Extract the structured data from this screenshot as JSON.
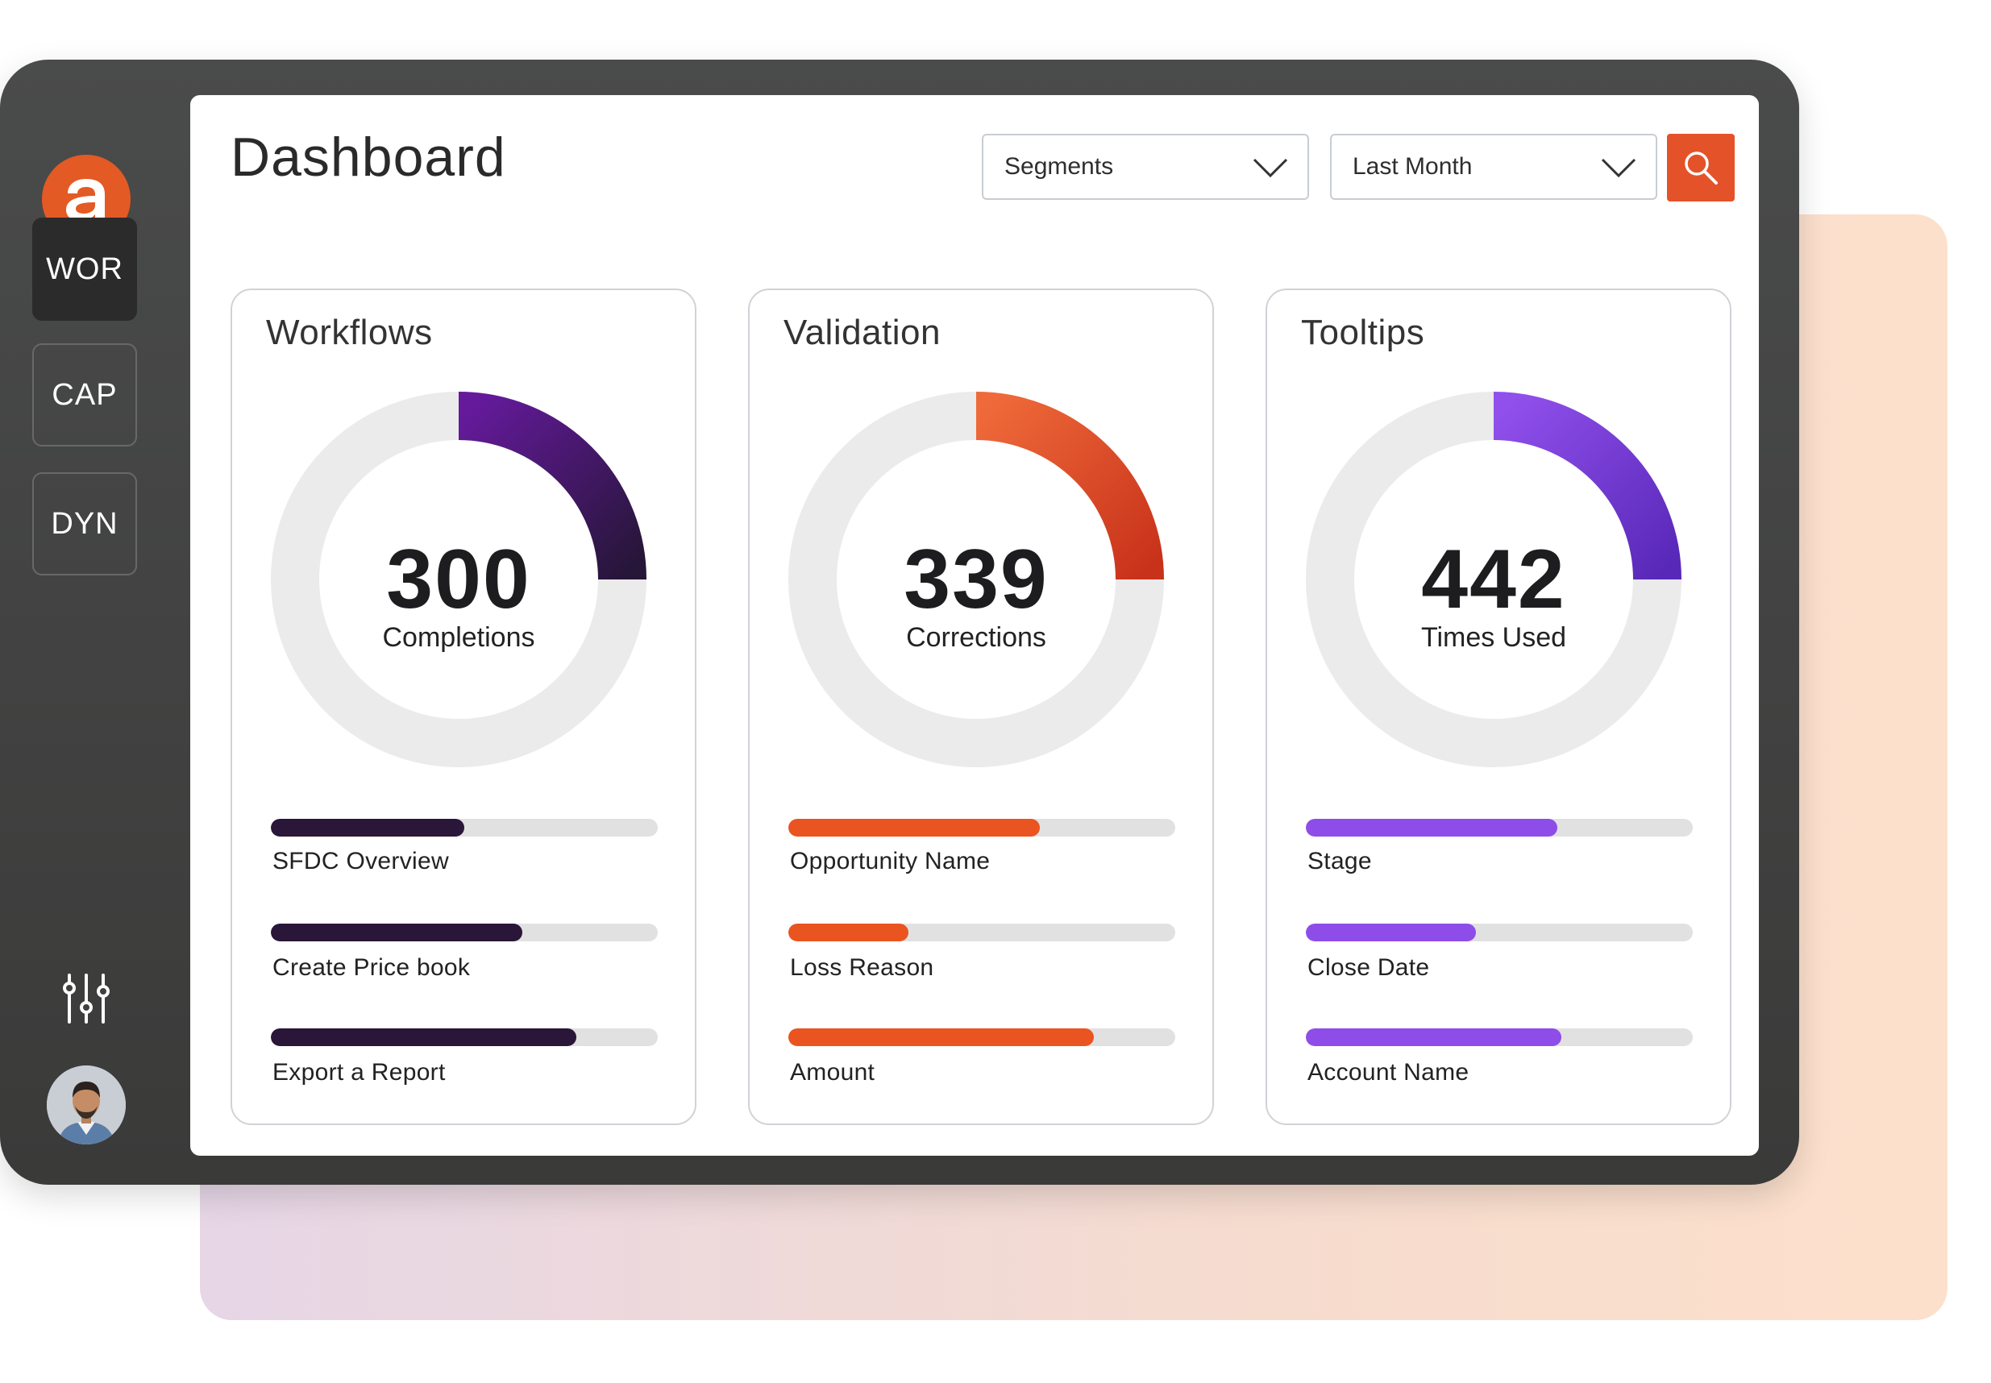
{
  "sidebar": {
    "logo_letter": "a",
    "items": [
      {
        "label": "WOR",
        "active": true
      },
      {
        "label": "CAP",
        "active": false
      },
      {
        "label": "DYN",
        "active": false
      }
    ],
    "settings_icon": "sliders-icon",
    "avatar_icon": "user-avatar"
  },
  "header": {
    "title": "Dashboard",
    "segment_select": "Segments",
    "period_select": "Last Month",
    "search_icon": "search-icon"
  },
  "colors": {
    "brand": "#e35a24",
    "workflows": "#2a1638",
    "validation": "#ea5420",
    "tooltips": "#8e4de8",
    "track": "#e1e1e1"
  },
  "cards": [
    {
      "title": "Workflows",
      "value": "300",
      "value_label": "Completions",
      "gauge_fraction": 0.25,
      "items": [
        {
          "label": "SFDC Overview",
          "fraction": 0.5
        },
        {
          "label": "Create Price book",
          "fraction": 0.65
        },
        {
          "label": "Export a Report",
          "fraction": 0.79
        }
      ]
    },
    {
      "title": "Validation",
      "value": "339",
      "value_label": "Corrections",
      "gauge_fraction": 0.25,
      "items": [
        {
          "label": "Opportunity Name",
          "fraction": 0.65
        },
        {
          "label": "Loss Reason",
          "fraction": 0.31
        },
        {
          "label": "Amount",
          "fraction": 0.79
        }
      ]
    },
    {
      "title": "Tooltips",
      "value": "442",
      "value_label": "Times Used",
      "gauge_fraction": 0.25,
      "items": [
        {
          "label": "Stage",
          "fraction": 0.65
        },
        {
          "label": "Close Date",
          "fraction": 0.44
        },
        {
          "label": "Account Name",
          "fraction": 0.66
        }
      ]
    }
  ]
}
